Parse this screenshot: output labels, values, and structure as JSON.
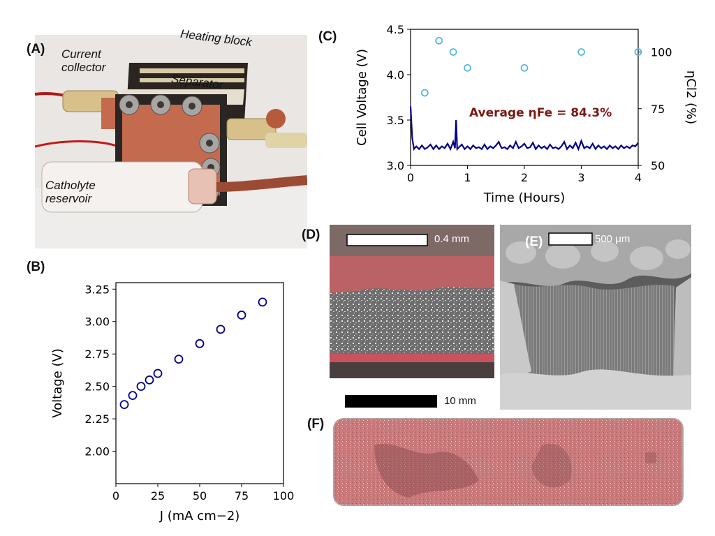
{
  "panels": {
    "a": {
      "label": "(A)",
      "photo_labels": {
        "current_collector": "Current collector",
        "heating_block": "Heating block",
        "separator": "Separator",
        "catholyte_reservoir": "Catholyte reservoir"
      }
    },
    "b": {
      "label": "(B)"
    },
    "c": {
      "label": "(C)"
    },
    "d": {
      "label": "(D)",
      "scale_bar": "0.4 mm"
    },
    "e": {
      "label": "(E)",
      "scale_bar": "500 μm"
    },
    "f": {
      "label": "(F)",
      "scale_bar": "10 mm"
    }
  },
  "colors": {
    "navy": "#00008b",
    "light_blue": "#5bb8e0",
    "annotation": "#7b1a12",
    "copper": "#c46a4e",
    "deposit_pink": "#c9646a",
    "sem_gray": "#8a8a8a"
  },
  "chart_data": [
    {
      "panel": "B",
      "type": "scatter",
      "xlabel": "J (mA cm−2)",
      "ylabel": "Voltage (V)",
      "xlim": [
        0,
        100
      ],
      "ylim": [
        1.75,
        3.3
      ],
      "xticks": [
        0,
        25,
        50,
        75,
        100
      ],
      "yticks": [
        2.0,
        2.25,
        2.5,
        2.75,
        3.0,
        3.25
      ],
      "yticklabels": [
        "2.00",
        "2.25",
        "2.50",
        "2.75",
        "3.00",
        "3.25"
      ],
      "marker": "open circle",
      "color": "#00008b",
      "grid": false,
      "x": [
        5,
        10,
        15,
        20,
        25,
        37.5,
        50,
        62.5,
        75,
        87.5
      ],
      "y": [
        2.36,
        2.43,
        2.5,
        2.55,
        2.6,
        2.71,
        2.83,
        2.94,
        3.05,
        3.15
      ]
    },
    {
      "panel": "C",
      "type": "line",
      "xlabel": "Time (Hours)",
      "ylabel": "Cell Voltage (V)",
      "y2label": "ηCl2 (%)",
      "xlim": [
        0,
        4
      ],
      "ylim": [
        3.0,
        4.5
      ],
      "y2lim": [
        50,
        110
      ],
      "xticks": [
        0,
        1,
        2,
        3,
        4
      ],
      "yticks": [
        3.0,
        3.5,
        4.0,
        4.5
      ],
      "yticklabels": [
        "3.0",
        "3.5",
        "4.0",
        "4.5"
      ],
      "y2ticks": [
        50,
        75,
        100
      ],
      "annotation": "Average ηFe = 84.3%",
      "grid": false,
      "series": [
        {
          "axis": "left",
          "type": "line",
          "color": "#00008b",
          "x": [
            0,
            0.03,
            0.06,
            0.1,
            0.15,
            0.2,
            0.25,
            0.3,
            0.35,
            0.4,
            0.45,
            0.5,
            0.55,
            0.6,
            0.65,
            0.7,
            0.75,
            0.78,
            0.8,
            0.82,
            0.85,
            0.9,
            0.95,
            1.0,
            1.05,
            1.1,
            1.15,
            1.2,
            1.25,
            1.3,
            1.35,
            1.4,
            1.45,
            1.5,
            1.55,
            1.6,
            1.65,
            1.7,
            1.75,
            1.8,
            1.85,
            1.9,
            1.95,
            2.0,
            2.05,
            2.1,
            2.15,
            2.2,
            2.25,
            2.3,
            2.35,
            2.4,
            2.45,
            2.5,
            2.55,
            2.6,
            2.65,
            2.7,
            2.75,
            2.8,
            2.85,
            2.9,
            2.95,
            3.0,
            3.05,
            3.1,
            3.15,
            3.2,
            3.25,
            3.3,
            3.35,
            3.4,
            3.45,
            3.5,
            3.55,
            3.6,
            3.65,
            3.7,
            3.75,
            3.8,
            3.85,
            3.9,
            3.95,
            4.0
          ],
          "y": [
            3.65,
            3.3,
            3.18,
            3.21,
            3.18,
            3.22,
            3.18,
            3.2,
            3.23,
            3.18,
            3.22,
            3.18,
            3.21,
            3.19,
            3.24,
            3.18,
            3.26,
            3.19,
            3.5,
            3.18,
            3.2,
            3.23,
            3.18,
            3.21,
            3.18,
            3.22,
            3.19,
            3.2,
            3.18,
            3.23,
            3.18,
            3.21,
            3.19,
            3.22,
            3.26,
            3.19,
            3.2,
            3.18,
            3.22,
            3.19,
            3.26,
            3.19,
            3.21,
            3.24,
            3.19,
            3.2,
            3.25,
            3.18,
            3.22,
            3.19,
            3.21,
            3.18,
            3.23,
            3.19,
            3.2,
            3.18,
            3.21,
            3.26,
            3.18,
            3.22,
            3.19,
            3.25,
            3.18,
            3.27,
            3.19,
            3.21,
            3.19,
            3.24,
            3.18,
            3.22,
            3.19,
            3.21,
            3.18,
            3.22,
            3.19,
            3.21,
            3.18,
            3.22,
            3.19,
            3.21,
            3.19,
            3.22,
            3.21,
            3.25
          ]
        },
        {
          "axis": "right",
          "type": "scatter",
          "marker": "open circle",
          "color": "#5bb8e0",
          "x": [
            0.25,
            0.5,
            0.75,
            1.0,
            2.0,
            3.0,
            4.0
          ],
          "y": [
            82,
            105,
            100,
            93,
            93,
            100,
            100
          ]
        }
      ]
    }
  ]
}
